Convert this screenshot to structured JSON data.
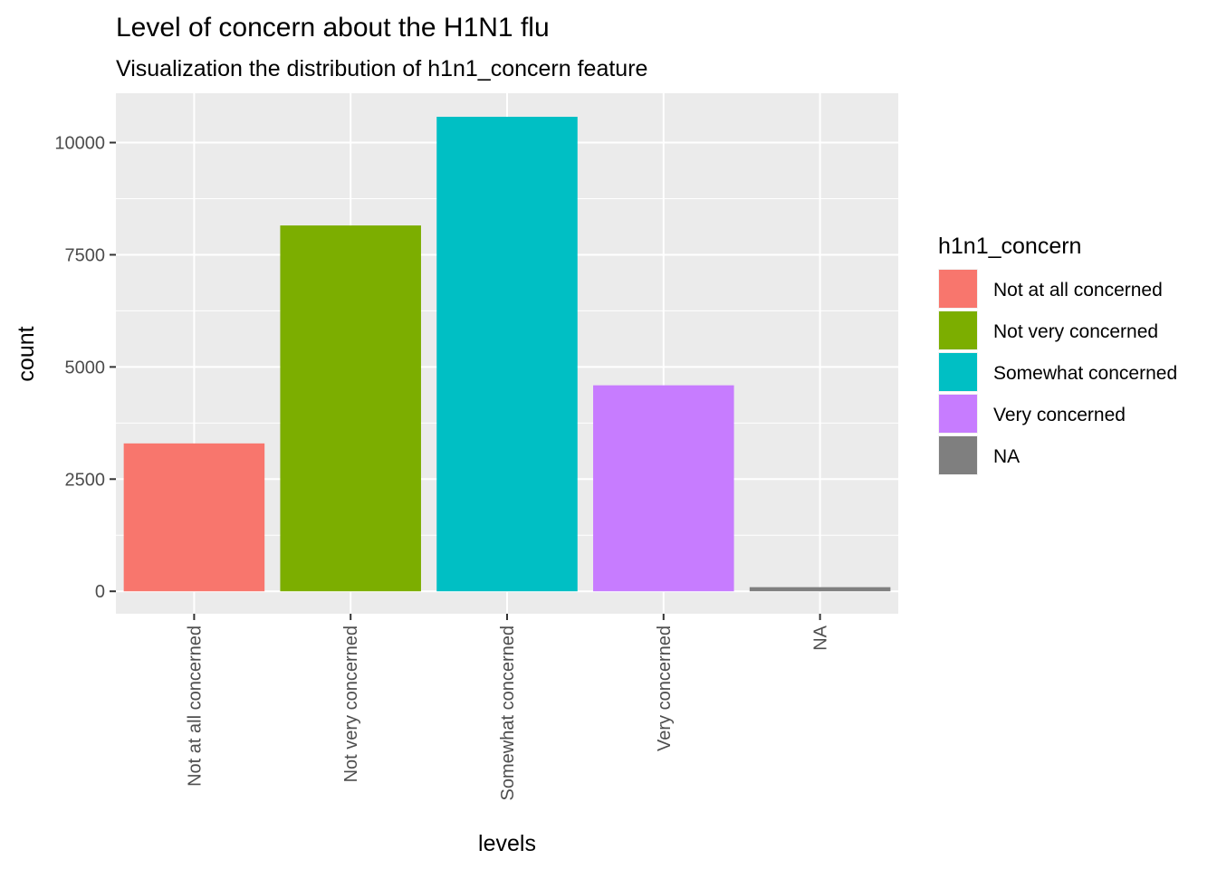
{
  "chart_data": {
    "type": "bar",
    "title": "Level of concern about the H1N1 flu",
    "subtitle": "Visualization the distribution of h1n1_concern feature",
    "xlabel": "levels",
    "ylabel": "count",
    "categories": [
      "Not at all concerned",
      "Not very concerned",
      "Somewhat concerned",
      "Very concerned",
      "NA"
    ],
    "values": [
      3296,
      8153,
      10575,
      4591,
      92
    ],
    "colors": [
      "#F8766D",
      "#7CAE00",
      "#00BFC4",
      "#C77CFF",
      "#7F7F7F"
    ],
    "ylim": [
      -500,
      11100
    ],
    "yticks": [
      0,
      2500,
      5000,
      7500,
      10000
    ],
    "ytick_labels": [
      "0",
      "2500",
      "5000",
      "7500",
      "10000"
    ],
    "grid": true,
    "panel_background": "#EBEBEB",
    "legend": {
      "title": "h1n1_concern",
      "position": "right",
      "entries": [
        "Not at all concerned",
        "Not very concerned",
        "Somewhat concerned",
        "Very concerned",
        "NA"
      ]
    }
  }
}
